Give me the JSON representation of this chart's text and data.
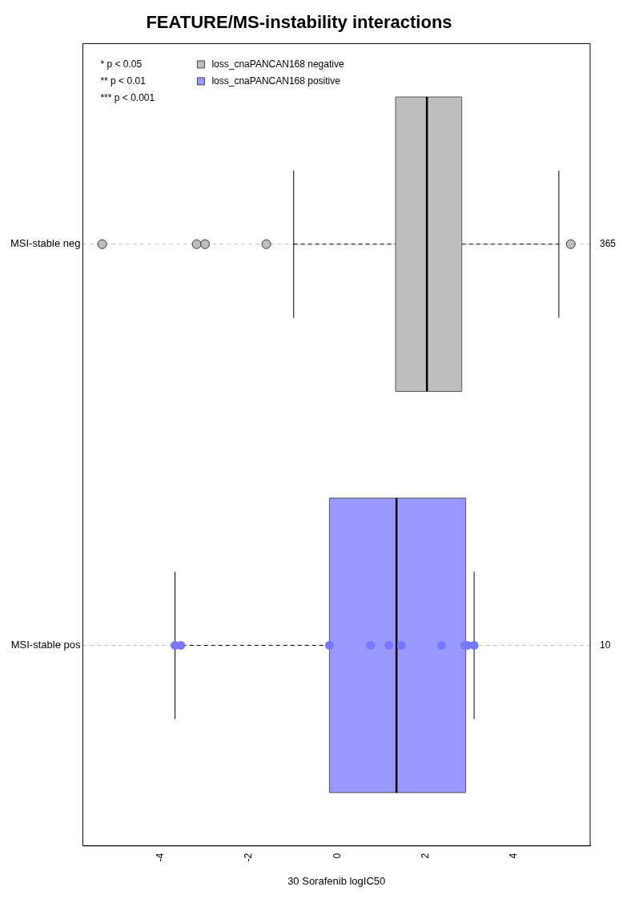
{
  "chart_data": {
    "type": "box",
    "title": "FEATURE/MS-instability interactions",
    "xlabel": "30 Sorafenib logIC50",
    "orientation": "horizontal",
    "categories": [
      "MSI-stable neg",
      "MSI-stable pos"
    ],
    "series": [
      {
        "name": "loss_cnaPANCAN168 negative",
        "color": "#bebebe",
        "boxes": [
          {
            "low": -0.99,
            "q1": 1.32,
            "median": 2.03,
            "q3": 2.82,
            "high": 5.02,
            "outliers": [
              -5.33,
              -3.19,
              -3.0,
              -1.61,
              5.29
            ]
          },
          null
        ]
      },
      {
        "name": "loss_cnaPANCAN168 positive",
        "color": "#9999ff",
        "boxes": [
          null,
          {
            "low": -3.68,
            "q1": -0.18,
            "median": 1.34,
            "q3": 2.91,
            "high": 3.1
          }
        ]
      },
      {
        "type": "scatter",
        "color": "#7777ff",
        "x": [
          "MSI-stable pos",
          "MSI-stable pos",
          "MSI-stable pos",
          "MSI-stable pos",
          "MSI-stable pos",
          "MSI-stable pos",
          "MSI-stable pos",
          "MSI-stable pos",
          "MSI-stable pos",
          "MSI-stable pos"
        ],
        "values": [
          -3.68,
          -3.55,
          -0.18,
          0.75,
          1.17,
          1.45,
          2.36,
          2.89,
          2.95,
          3.1
        ]
      }
    ],
    "xlim": [
      -5.77,
      5.73
    ],
    "xticks": [
      -4,
      -2,
      0,
      2,
      4
    ],
    "grid": "y",
    "legend": "top left",
    "marker": "circle",
    "annotations": [
      "* p < 0.05",
      "** p < 0.01",
      "*** p < 0.001",
      "365",
      "10"
    ]
  }
}
